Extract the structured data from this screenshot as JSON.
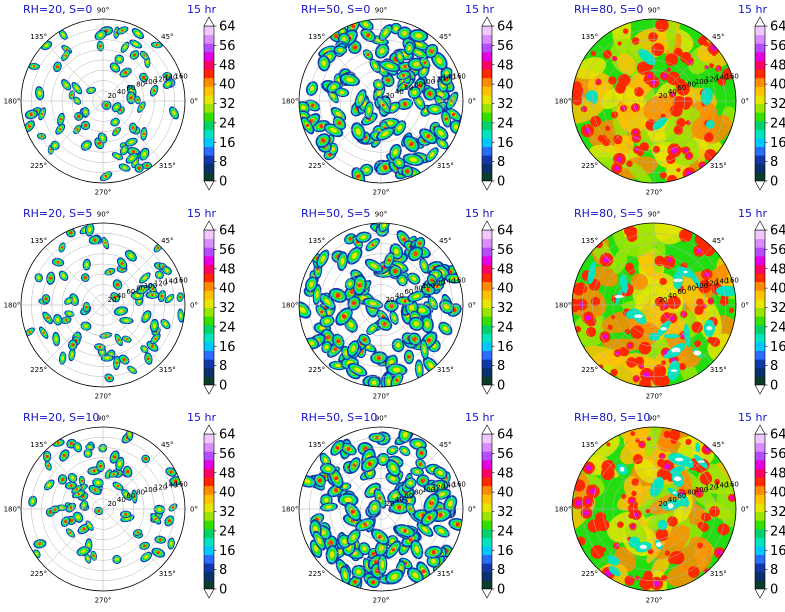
{
  "chart_data": {
    "type": "polar-contour-grid",
    "time_label": "15 hr",
    "angle_labels": [
      "0°",
      "45°",
      "90°",
      "135°",
      "180°",
      "225°",
      "270°",
      "315°"
    ],
    "radial_labels": [
      "20",
      "40",
      "60",
      "80",
      "100",
      "120",
      "140",
      "160"
    ],
    "colorbar_ticks": [
      "0",
      "8",
      "16",
      "24",
      "32",
      "40",
      "48",
      "56",
      "64"
    ],
    "colorbar_range": [
      0,
      64
    ],
    "colormap": [
      "#0b3d2b",
      "#08306b",
      "#1038a8",
      "#2b6cff",
      "#00c8ff",
      "#00e5c0",
      "#00d36a",
      "#33e000",
      "#9be600",
      "#e6e600",
      "#ffc200",
      "#ff8a00",
      "#ff2800",
      "#ff0064",
      "#e600e6",
      "#b44cff",
      "#d98cff",
      "#f0c8ff"
    ],
    "panels": [
      {
        "title": "RH=20, S=0",
        "rh": 20,
        "s": 0
      },
      {
        "title": "RH=50, S=0",
        "rh": 50,
        "s": 0
      },
      {
        "title": "RH=80, S=0",
        "rh": 80,
        "s": 0
      },
      {
        "title": "RH=20, S=5",
        "rh": 20,
        "s": 5
      },
      {
        "title": "RH=50, S=5",
        "rh": 50,
        "s": 5
      },
      {
        "title": "RH=80, S=5",
        "rh": 80,
        "s": 5
      },
      {
        "title": "RH=20, S=10",
        "rh": 20,
        "s": 10
      },
      {
        "title": "RH=50, S=10",
        "rh": 50,
        "s": 10
      },
      {
        "title": "RH=80, S=10",
        "rh": 80,
        "s": 10
      }
    ]
  }
}
